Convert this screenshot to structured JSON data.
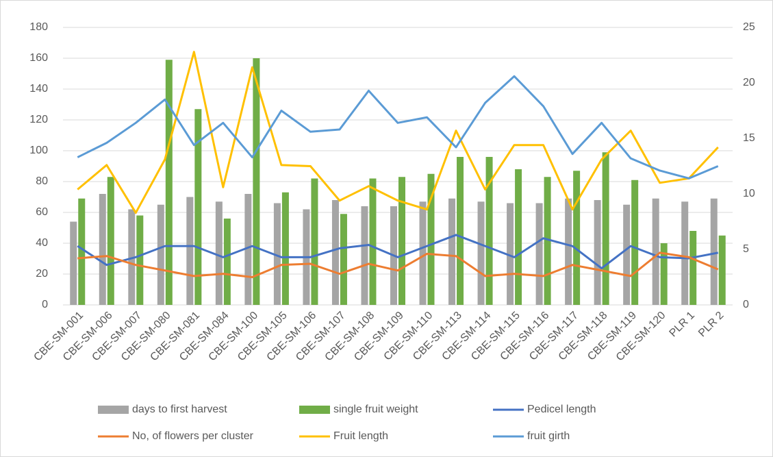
{
  "chart_data": {
    "type": "bar",
    "categories": [
      "CBE-SM-001",
      "CBE-SM-006",
      "CBE-SM-007",
      "CBE-SM-080",
      "CBE-SM-081",
      "CBE-SM-084",
      "CBE-SM-100",
      "CBE-SM-105",
      "CBE-SM-106",
      "CBE-SM-107",
      "CBE-SM-108",
      "CBE-SM-109",
      "CBE-SM-110",
      "CBE-SM-113",
      "CBE-SM-114",
      "CBE-SM-115",
      "CBE-SM-116",
      "CBE-SM-117",
      "CBE-SM-118",
      "CBE-SM-119",
      "CBE-SM-120",
      "PLR 1",
      "PLR 2"
    ],
    "series": [
      {
        "name": "days to first harvest",
        "type": "bar",
        "color": "#a5a5a5",
        "values": [
          54,
          72,
          62,
          65,
          70,
          67,
          72,
          66,
          62,
          68,
          64,
          64,
          67,
          69,
          67,
          66,
          66,
          69,
          68,
          65,
          69,
          67,
          69
        ]
      },
      {
        "name": "single fruit weight",
        "type": "bar",
        "color": "#70ad47",
        "values": [
          69,
          83,
          58,
          159,
          127,
          56,
          160,
          73,
          82,
          59,
          82,
          83,
          85,
          96,
          96,
          88,
          83,
          87,
          99,
          81,
          40,
          48,
          45
        ]
      },
      {
        "name": "Pedicel length",
        "type": "line",
        "axis": "y2",
        "color": "#4472c4",
        "values": [
          5.3,
          3.6,
          4.3,
          5.3,
          5.3,
          4.3,
          5.3,
          4.3,
          4.3,
          5.1,
          5.4,
          4.3,
          5.3,
          6.3,
          5.3,
          4.3,
          6.0,
          5.3,
          3.3,
          5.3,
          4.3,
          4.2,
          4.7
        ]
      },
      {
        "name": "No, of flowers per cluster",
        "type": "line",
        "axis": "y2",
        "color": "#ed7d31",
        "values": [
          4.2,
          4.4,
          3.6,
          3.1,
          2.6,
          2.8,
          2.5,
          3.6,
          3.7,
          2.8,
          3.7,
          3.1,
          4.6,
          4.4,
          2.6,
          2.8,
          2.6,
          3.6,
          3.1,
          2.6,
          4.7,
          4.3,
          3.2
        ]
      },
      {
        "name": "Fruit length",
        "type": "line",
        "axis": "y2",
        "color": "#ffc000",
        "values": [
          10.4,
          12.6,
          8.3,
          13.1,
          22.8,
          10.6,
          21.4,
          12.6,
          12.5,
          9.4,
          10.7,
          9.4,
          8.6,
          15.7,
          10.4,
          14.4,
          14.4,
          8.6,
          13.1,
          15.7,
          11.0,
          11.4,
          14.2
        ]
      },
      {
        "name": "fruit girth",
        "type": "line",
        "axis": "y2",
        "color": "#5b9bd5",
        "values": [
          13.3,
          14.6,
          16.4,
          18.5,
          14.4,
          16.4,
          13.3,
          17.5,
          15.6,
          15.8,
          19.3,
          16.4,
          16.9,
          14.2,
          18.2,
          20.6,
          17.9,
          13.6,
          16.4,
          13.2,
          12.1,
          11.4,
          12.5
        ]
      }
    ],
    "ylim": [
      0,
      180
    ],
    "yticks": [
      0,
      20,
      40,
      60,
      80,
      100,
      120,
      140,
      160,
      180
    ],
    "y2lim": [
      0,
      25
    ],
    "y2ticks": [
      0,
      5,
      10,
      15,
      20,
      25
    ],
    "grid": true,
    "legend": "bottom"
  }
}
